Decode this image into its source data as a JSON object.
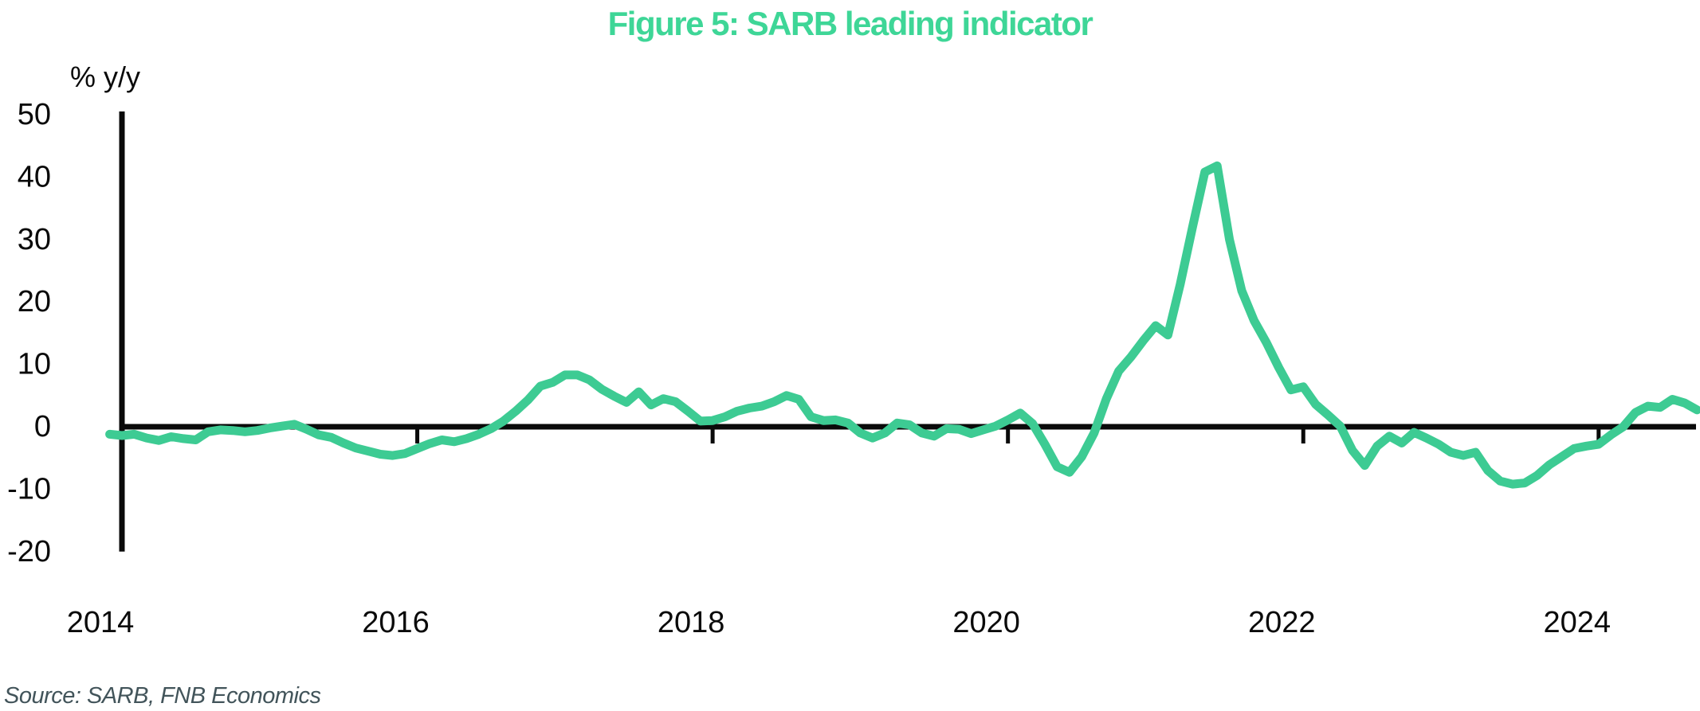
{
  "title": "Figure 5: SARB leading indicator",
  "y_axis": {
    "label": "% y/y",
    "ticks": [
      50,
      40,
      30,
      20,
      10,
      0,
      -10,
      -20
    ]
  },
  "x_axis": {
    "ticks": [
      2014,
      2016,
      2018,
      2020,
      2022,
      2024
    ]
  },
  "source": "Source: SARB, FNB Economics",
  "colors": {
    "title_green": "#3ED697",
    "line_green": "#3DCB93",
    "axis_black": "#0a0a0a",
    "source_slate": "#42545A",
    "background": "#ffffff"
  },
  "chart_data": {
    "type": "line",
    "title": "Figure 5: SARB leading indicator",
    "xlabel": "",
    "ylabel": "% y/y",
    "ylim": [
      -20,
      50
    ],
    "x_range": [
      "2013-12",
      "2024-09"
    ],
    "frequency": "monthly",
    "grid": false,
    "legend": false,
    "axis": {
      "zero_baseline": true,
      "x_tick_years": [
        2014,
        2016,
        2018,
        2020,
        2022,
        2024
      ]
    },
    "series": [
      {
        "name": "SARB leading indicator (% y/y)",
        "start": "2013-12",
        "values": [
          -1.2,
          -1.4,
          -1.2,
          -1.8,
          -2.2,
          -1.6,
          -1.9,
          -2.1,
          -0.8,
          -0.5,
          -0.6,
          -0.8,
          -0.6,
          -0.2,
          0.1,
          0.4,
          -0.4,
          -1.3,
          -1.7,
          -2.6,
          -3.4,
          -3.9,
          -4.4,
          -4.6,
          -4.3,
          -3.5,
          -2.7,
          -2.1,
          -2.4,
          -1.9,
          -1.2,
          -0.3,
          0.9,
          2.5,
          4.3,
          6.5,
          7.1,
          8.3,
          8.3,
          7.5,
          6.0,
          4.9,
          3.9,
          5.6,
          3.5,
          4.5,
          4.0,
          2.5,
          0.9,
          1.0,
          1.6,
          2.5,
          3.0,
          3.3,
          4.0,
          5.0,
          4.4,
          1.6,
          1.0,
          1.1,
          0.6,
          -1.0,
          -1.8,
          -1.0,
          0.6,
          0.3,
          -1.0,
          -1.5,
          -0.3,
          -0.4,
          -1.1,
          -0.5,
          0.1,
          1.1,
          2.2,
          0.5,
          -2.8,
          -6.4,
          -7.3,
          -4.8,
          -1.0,
          4.5,
          8.9,
          11.2,
          13.8,
          16.2,
          14.7,
          22.8,
          32.0,
          40.8,
          41.8,
          30.0,
          21.8,
          17.0,
          13.5,
          9.5,
          5.9,
          6.4,
          3.6,
          1.9,
          0.1,
          -3.8,
          -6.2,
          -3.1,
          -1.5,
          -2.6,
          -0.9,
          -1.8,
          -2.8,
          -4.1,
          -4.6,
          -4.1,
          -7.0,
          -8.7,
          -9.2,
          -9.0,
          -7.8,
          -6.1,
          -4.8,
          -3.5,
          -3.1,
          -2.8,
          -1.3,
          0.0,
          2.3,
          3.3,
          3.1,
          4.4,
          3.8,
          2.7
        ]
      }
    ]
  }
}
